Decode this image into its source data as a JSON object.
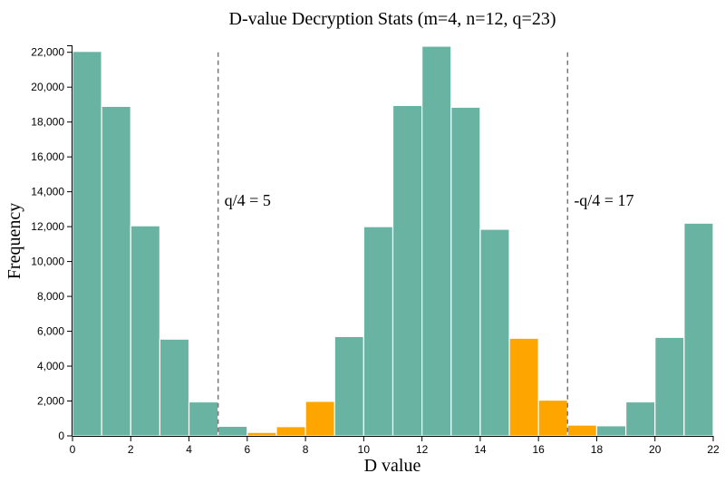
{
  "chart_data": {
    "type": "bar",
    "title": "D-value Decryption Stats (m=4, n=12, q=23)",
    "xlabel": "D value",
    "ylabel": "Frequency",
    "xlim": [
      0,
      22
    ],
    "ylim": [
      0,
      22400
    ],
    "x_ticks": [
      0,
      2,
      4,
      6,
      8,
      10,
      12,
      14,
      16,
      18,
      20,
      22
    ],
    "y_ticks": [
      0,
      2000,
      4000,
      6000,
      8000,
      10000,
      12000,
      14000,
      16000,
      18000,
      20000,
      22000
    ],
    "y_tick_labels": [
      "0",
      "2,000",
      "4,000",
      "6,000",
      "8,000",
      "10,000",
      "12,000",
      "14,000",
      "16,000",
      "18,000",
      "20,000",
      "22,000"
    ],
    "bin_width": 1,
    "colors": {
      "correct": "#69b3a2",
      "error": "#ffa500"
    },
    "bins": [
      {
        "x": 0,
        "value": 22050,
        "group": "correct"
      },
      {
        "x": 1,
        "value": 18900,
        "group": "correct"
      },
      {
        "x": 2,
        "value": 12050,
        "group": "correct"
      },
      {
        "x": 3,
        "value": 5550,
        "group": "correct"
      },
      {
        "x": 4,
        "value": 1950,
        "group": "correct"
      },
      {
        "x": 5,
        "value": 550,
        "group": "correct"
      },
      {
        "x": 6,
        "value": 200,
        "group": "error"
      },
      {
        "x": 7,
        "value": 530,
        "group": "error"
      },
      {
        "x": 8,
        "value": 1980,
        "group": "error"
      },
      {
        "x": 9,
        "value": 5700,
        "group": "correct"
      },
      {
        "x": 10,
        "value": 12000,
        "group": "correct"
      },
      {
        "x": 11,
        "value": 18950,
        "group": "correct"
      },
      {
        "x": 12,
        "value": 22350,
        "group": "correct"
      },
      {
        "x": 13,
        "value": 18850,
        "group": "correct"
      },
      {
        "x": 14,
        "value": 11850,
        "group": "correct"
      },
      {
        "x": 15,
        "value": 5600,
        "group": "error"
      },
      {
        "x": 16,
        "value": 2050,
        "group": "error"
      },
      {
        "x": 17,
        "value": 620,
        "group": "error"
      },
      {
        "x": 18,
        "value": 580,
        "group": "correct"
      },
      {
        "x": 19,
        "value": 1950,
        "group": "correct"
      },
      {
        "x": 20,
        "value": 5650,
        "group": "correct"
      },
      {
        "x": 21,
        "value": 12200,
        "group": "correct"
      }
    ],
    "annotations": [
      {
        "x": 5,
        "y_top": 22000,
        "label": "q/4 = 5",
        "label_y": 13500
      },
      {
        "x": 17,
        "y_top": 22000,
        "label": "-q/4 = 17",
        "label_y": 13500
      }
    ]
  }
}
